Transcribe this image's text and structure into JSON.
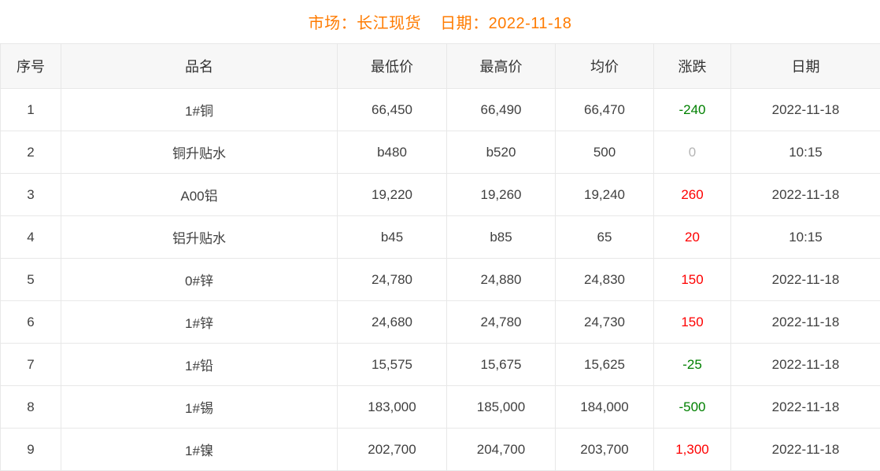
{
  "title": {
    "market": "市场：长江现货",
    "date": "日期：2022-11-18"
  },
  "table": {
    "columns": [
      "序号",
      "品名",
      "最低价",
      "最高价",
      "均价",
      "涨跌",
      "日期"
    ],
    "rows": [
      {
        "no": "1",
        "name": "1#铜",
        "low": "66,450",
        "high": "66,490",
        "avg": "66,470",
        "change": "-240",
        "trend": "down",
        "date": "2022-11-18"
      },
      {
        "no": "2",
        "name": "铜升贴水",
        "low": "b480",
        "high": "b520",
        "avg": "500",
        "change": "0",
        "trend": "zero",
        "date": "10:15"
      },
      {
        "no": "3",
        "name": "A00铝",
        "low": "19,220",
        "high": "19,260",
        "avg": "19,240",
        "change": "260",
        "trend": "up",
        "date": "2022-11-18"
      },
      {
        "no": "4",
        "name": "铝升贴水",
        "low": "b45",
        "high": "b85",
        "avg": "65",
        "change": "20",
        "trend": "up",
        "date": "10:15"
      },
      {
        "no": "5",
        "name": "0#锌",
        "low": "24,780",
        "high": "24,880",
        "avg": "24,830",
        "change": "150",
        "trend": "up",
        "date": "2022-11-18"
      },
      {
        "no": "6",
        "name": "1#锌",
        "low": "24,680",
        "high": "24,780",
        "avg": "24,730",
        "change": "150",
        "trend": "up",
        "date": "2022-11-18"
      },
      {
        "no": "7",
        "name": "1#铅",
        "low": "15,575",
        "high": "15,675",
        "avg": "15,625",
        "change": "-25",
        "trend": "down",
        "date": "2022-11-18"
      },
      {
        "no": "8",
        "name": "1#锡",
        "low": "183,000",
        "high": "185,000",
        "avg": "184,000",
        "change": "-500",
        "trend": "down",
        "date": "2022-11-18"
      },
      {
        "no": "9",
        "name": "1#镍",
        "low": "202,700",
        "high": "204,700",
        "avg": "203,700",
        "change": "1,300",
        "trend": "up",
        "date": "2022-11-18"
      }
    ]
  },
  "colors": {
    "title_orange": "#ff7b00",
    "up_red": "#fe0000",
    "down_green": "#008000",
    "zero_gray": "#b5b5b5",
    "header_bg": "#f7f7f7",
    "border": "#e8e8e8",
    "text": "#404040"
  }
}
